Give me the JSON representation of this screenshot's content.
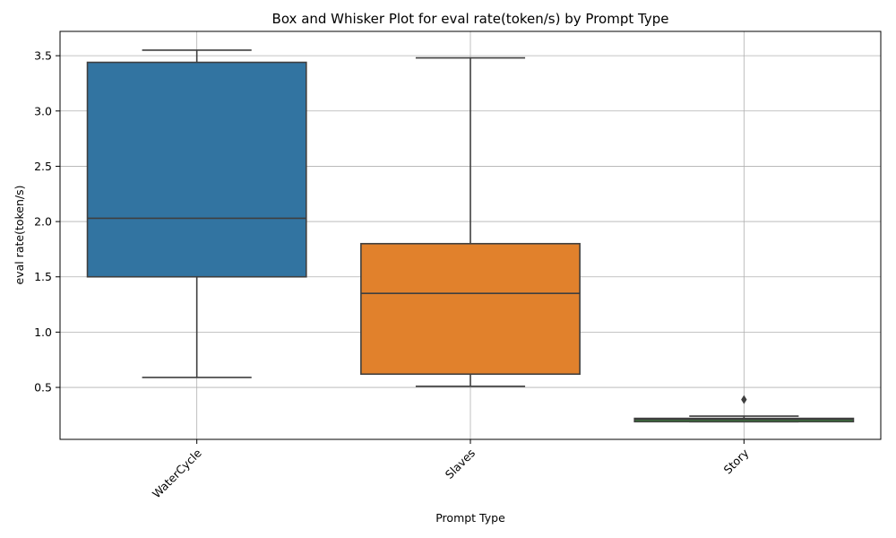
{
  "chart_data": {
    "type": "box",
    "title": "Box and Whisker Plot for eval rate(token/s) by Prompt Type",
    "xlabel": "Prompt Type",
    "ylabel": "eval rate(token/s)",
    "ylim": [
      0.03,
      3.72
    ],
    "yticks": [
      "0.5",
      "1.0",
      "1.5",
      "2.0",
      "2.5",
      "3.0",
      "3.5"
    ],
    "grid": true,
    "categories": [
      "WaterCycle",
      "Slaves",
      "Story"
    ],
    "boxes": [
      {
        "category": "WaterCycle",
        "whisker_low": 0.59,
        "q1": 1.5,
        "median": 2.03,
        "q3": 3.44,
        "whisker_high": 3.55,
        "outliers": [],
        "color": "#3274a1"
      },
      {
        "category": "Slaves",
        "whisker_low": 0.51,
        "q1": 0.62,
        "median": 1.35,
        "q3": 1.8,
        "whisker_high": 3.48,
        "outliers": [],
        "color": "#e1812c"
      },
      {
        "category": "Story",
        "whisker_low": 0.19,
        "q1": 0.19,
        "median": 0.21,
        "q3": 0.22,
        "whisker_high": 0.24,
        "outliers": [
          0.39
        ],
        "color": "#3a923a"
      }
    ]
  }
}
